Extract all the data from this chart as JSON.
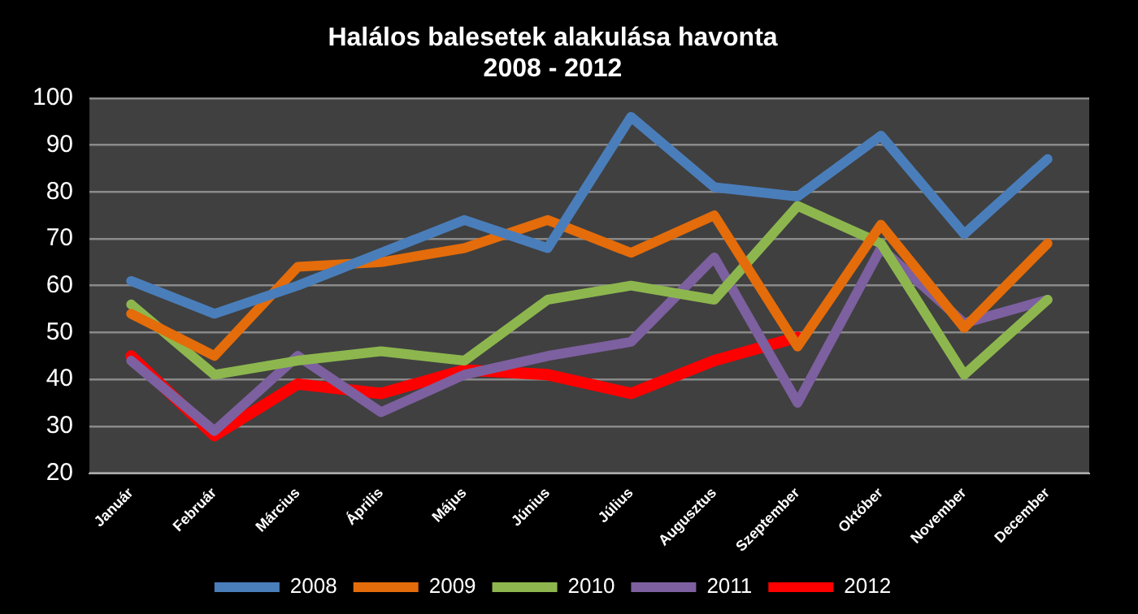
{
  "chart_data": {
    "type": "line",
    "title": [
      "Halálos balesetek alakulása havonta",
      "2008 - 2012"
    ],
    "categories": [
      "Január",
      "Február",
      "Március",
      "Április",
      "Május",
      "Június",
      "Július",
      "Augusztus",
      "Szeptember",
      "Október",
      "November",
      "December"
    ],
    "series": [
      {
        "name": "2008",
        "color": "#4a7ebb",
        "values": [
          61,
          54,
          60,
          67,
          74,
          68,
          96,
          81,
          79,
          92,
          71,
          87
        ]
      },
      {
        "name": "2009",
        "color": "#e46c0a",
        "values": [
          54,
          45,
          64,
          65,
          68,
          74,
          67,
          75,
          47,
          73,
          51,
          69
        ]
      },
      {
        "name": "2010",
        "color": "#8db74e",
        "values": [
          56,
          41,
          44,
          46,
          44,
          57,
          60,
          57,
          77,
          69,
          41,
          57
        ]
      },
      {
        "name": "2011",
        "color": "#7d60a0",
        "values": [
          44,
          29,
          45,
          33,
          41,
          45,
          48,
          66,
          35,
          68,
          52,
          57
        ]
      },
      {
        "name": "2012",
        "color": "#ff0000",
        "values": [
          45,
          28,
          39,
          37,
          42,
          41,
          37,
          44,
          49,
          null,
          null,
          null
        ]
      }
    ],
    "ylim": [
      20,
      100
    ],
    "yticks": [
      20,
      30,
      40,
      50,
      60,
      70,
      80,
      90,
      100
    ],
    "grid": "y",
    "legend": "bottom",
    "marker": "none",
    "line_style": "solid"
  }
}
